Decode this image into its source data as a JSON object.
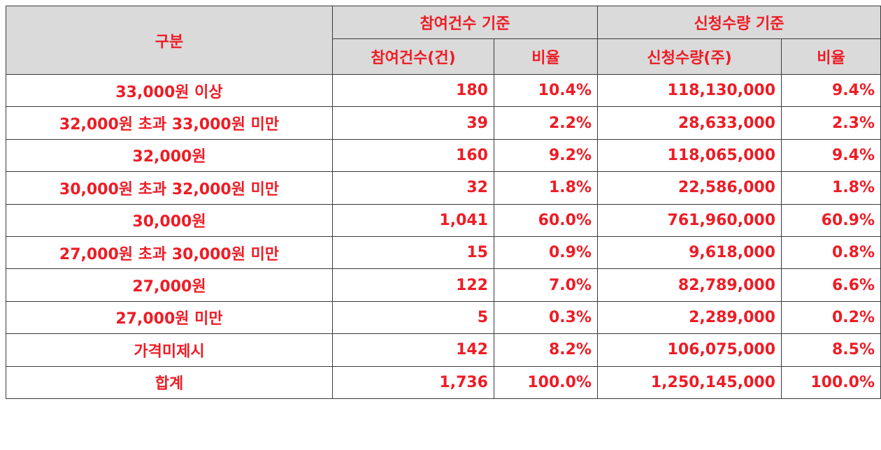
{
  "header": {
    "category": "구분",
    "group_participation": "참여건수 기준",
    "group_subscription": "신청수량 기준",
    "col_participation_count": "참여건수(건)",
    "col_participation_ratio": "비율",
    "col_subscription_qty": "신청수량(주)",
    "col_subscription_ratio": "비율"
  },
  "rows": [
    {
      "category": "33,000원 이상",
      "count": "180",
      "count_ratio": "10.4%",
      "qty": "118,130,000",
      "qty_ratio": "9.4%"
    },
    {
      "category": "32,000원 초과 33,000원 미만",
      "count": "39",
      "count_ratio": "2.2%",
      "qty": "28,633,000",
      "qty_ratio": "2.3%"
    },
    {
      "category": "32,000원",
      "count": "160",
      "count_ratio": "9.2%",
      "qty": "118,065,000",
      "qty_ratio": "9.4%"
    },
    {
      "category": "30,000원 초과 32,000원 미만",
      "count": "32",
      "count_ratio": "1.8%",
      "qty": "22,586,000",
      "qty_ratio": "1.8%"
    },
    {
      "category": "30,000원",
      "count": "1,041",
      "count_ratio": "60.0%",
      "qty": "761,960,000",
      "qty_ratio": "60.9%"
    },
    {
      "category": "27,000원 초과 30,000원 미만",
      "count": "15",
      "count_ratio": "0.9%",
      "qty": "9,618,000",
      "qty_ratio": "0.8%"
    },
    {
      "category": "27,000원",
      "count": "122",
      "count_ratio": "7.0%",
      "qty": "82,789,000",
      "qty_ratio": "6.6%"
    },
    {
      "category": "27,000원 미만",
      "count": "5",
      "count_ratio": "0.3%",
      "qty": "2,289,000",
      "qty_ratio": "0.2%"
    },
    {
      "category": "가격미제시",
      "count": "142",
      "count_ratio": "8.2%",
      "qty": "106,075,000",
      "qty_ratio": "8.5%"
    },
    {
      "category": "합계",
      "count": "1,736",
      "count_ratio": "100.0%",
      "qty": "1,250,145,000",
      "qty_ratio": "100.0%"
    }
  ],
  "colors": {
    "text": "#ee1c25",
    "header_bg": "#dadada",
    "border": "#3a3a3a"
  }
}
